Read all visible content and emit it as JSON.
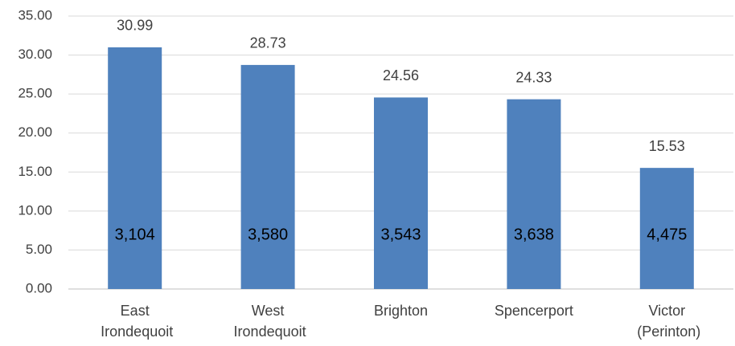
{
  "chart_data": {
    "type": "bar",
    "categories": [
      "East Irondequoit",
      "West Irondequoit",
      "Brighton",
      "Spencerport",
      "Victor (Perinton)"
    ],
    "values": [
      30.99,
      28.73,
      24.56,
      24.33,
      15.53
    ],
    "bar_labels": [
      "3,104",
      "3,580",
      "3,543",
      "3,638",
      "4,475"
    ],
    "color": "#4f81bd",
    "ylim": [
      0,
      35
    ],
    "yticks": [
      {
        "value": 0,
        "label": "0.00"
      },
      {
        "value": 5,
        "label": "5.00"
      },
      {
        "value": 10,
        "label": "10.00"
      },
      {
        "value": 15,
        "label": "15.00"
      },
      {
        "value": 20,
        "label": "20.00"
      },
      {
        "value": 25,
        "label": "25.00"
      },
      {
        "value": 30,
        "label": "30.00"
      },
      {
        "value": 35,
        "label": "35.00"
      }
    ],
    "grid": true
  }
}
